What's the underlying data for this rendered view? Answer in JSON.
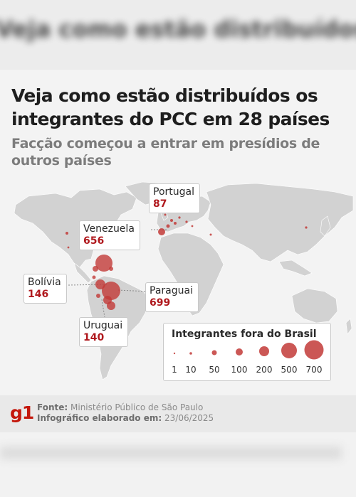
{
  "background_title": "Veja como estão distribuídos os integrantes do PCC em 28 países",
  "title": "Veja como estão distribuídos os integrantes do PCC em 28 países",
  "subtitle": "Facção começou a entrar em presídios de outros países",
  "callouts": [
    {
      "name": "Portugal",
      "value": "87"
    },
    {
      "name": "Venezuela",
      "value": "656"
    },
    {
      "name": "Bolívia",
      "value": "146"
    },
    {
      "name": "Paraguai",
      "value": "699"
    },
    {
      "name": "Uruguai",
      "value": "140"
    }
  ],
  "legend": {
    "title": "Integrantes fora do Brasil",
    "sizes": [
      "1",
      "10",
      "50",
      "100",
      "200",
      "500",
      "700"
    ]
  },
  "colors": {
    "accent": "#b0191e",
    "bubble": "#c23a37",
    "map_land": "#d2d2d2"
  },
  "footer": {
    "logo": "g1",
    "source_label": "Fonte:",
    "source_value": "Ministério Público de São Paulo",
    "made_label": "Infográfico elaborado em:",
    "made_value": "23/06/2025"
  }
}
